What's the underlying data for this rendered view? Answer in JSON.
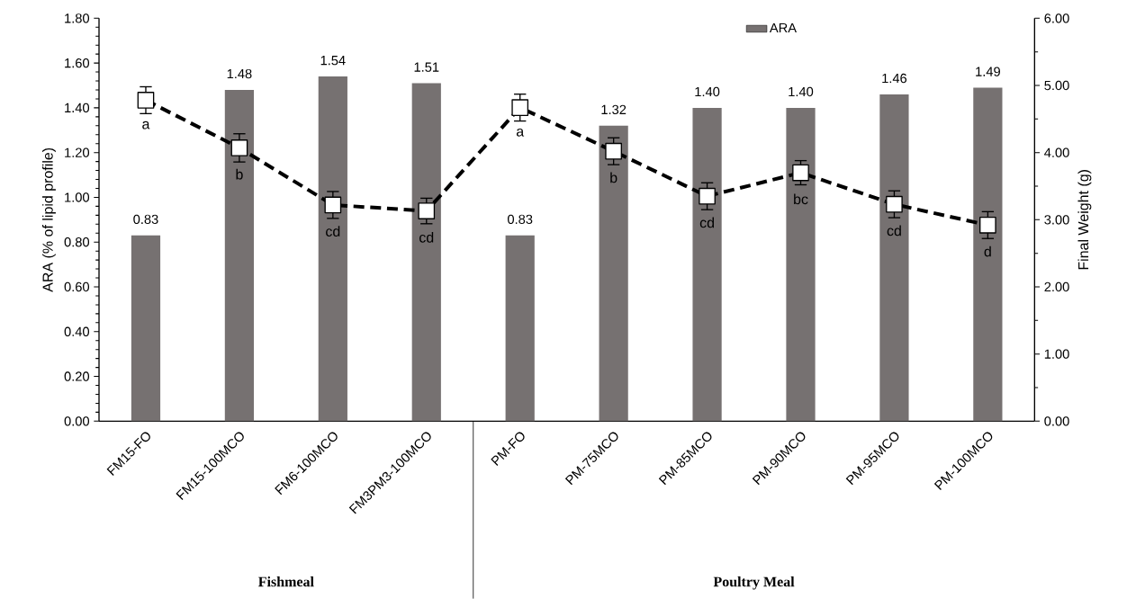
{
  "chart_data": {
    "type": "bar",
    "ylabel": "ARA (% of lipid profile)",
    "y2label": "Final Weight (g)",
    "categories": [
      "FM15-FO",
      "FM15-100MCO",
      "FM6-100MCO",
      "FM3PM3-100MCO",
      "PM-FO",
      "PM-75MCO",
      "PM-85MCO",
      "PM-90MCO",
      "PM-95MCO",
      "PM-100MCO"
    ],
    "series": [
      {
        "name": "ARA",
        "color": "#767171",
        "values": [
          0.83,
          1.48,
          1.54,
          1.51,
          0.83,
          1.32,
          1.4,
          1.4,
          1.46,
          1.49
        ],
        "value_labels": [
          "0.83",
          "1.48",
          "1.54",
          "1.51",
          "0.83",
          "1.32",
          "1.40",
          "1.40",
          "1.46",
          "1.49"
        ]
      },
      {
        "type": "line",
        "axis": "y2",
        "color": "#000000",
        "values": [
          4.78,
          4.07,
          3.22,
          3.13,
          4.67,
          4.02,
          3.35,
          3.7,
          3.23,
          2.92
        ],
        "errors": [
          0.2,
          0.21,
          0.2,
          0.19,
          0.2,
          0.2,
          0.2,
          0.18,
          0.2,
          0.2
        ]
      }
    ],
    "marker": "square",
    "line_style": "dashed",
    "legend": "top",
    "ylim": [
      0,
      1.8
    ],
    "yticks": [
      {
        "value": 0,
        "label": "0.00"
      },
      {
        "value": 0.2,
        "label": "0.20"
      },
      {
        "value": 0.4,
        "label": "0.40"
      },
      {
        "value": 0.6,
        "label": "0.60"
      },
      {
        "value": 0.8,
        "label": "0.80"
      },
      {
        "value": 1.0,
        "label": "1.00"
      },
      {
        "value": 1.2,
        "label": "1.20"
      },
      {
        "value": 1.4,
        "label": "1.40"
      },
      {
        "value": 1.6,
        "label": "1.60"
      },
      {
        "value": 1.8,
        "label": "1.80"
      }
    ],
    "y2lim": [
      0,
      6
    ],
    "y2ticks": [
      {
        "value": 0,
        "label": "0.00"
      },
      {
        "value": 1,
        "label": "1.00"
      },
      {
        "value": 2,
        "label": "2.00"
      },
      {
        "value": 3,
        "label": "3.00"
      },
      {
        "value": 4,
        "label": "4.00"
      },
      {
        "value": 5,
        "label": "5.00"
      },
      {
        "value": 6,
        "label": "6.00"
      }
    ],
    "annotations": [
      "a",
      "b",
      "cd",
      "cd",
      "a",
      "b",
      "cd",
      "bc",
      "cd",
      "d",
      "Fishmeal",
      "Poultry Meal"
    ]
  }
}
